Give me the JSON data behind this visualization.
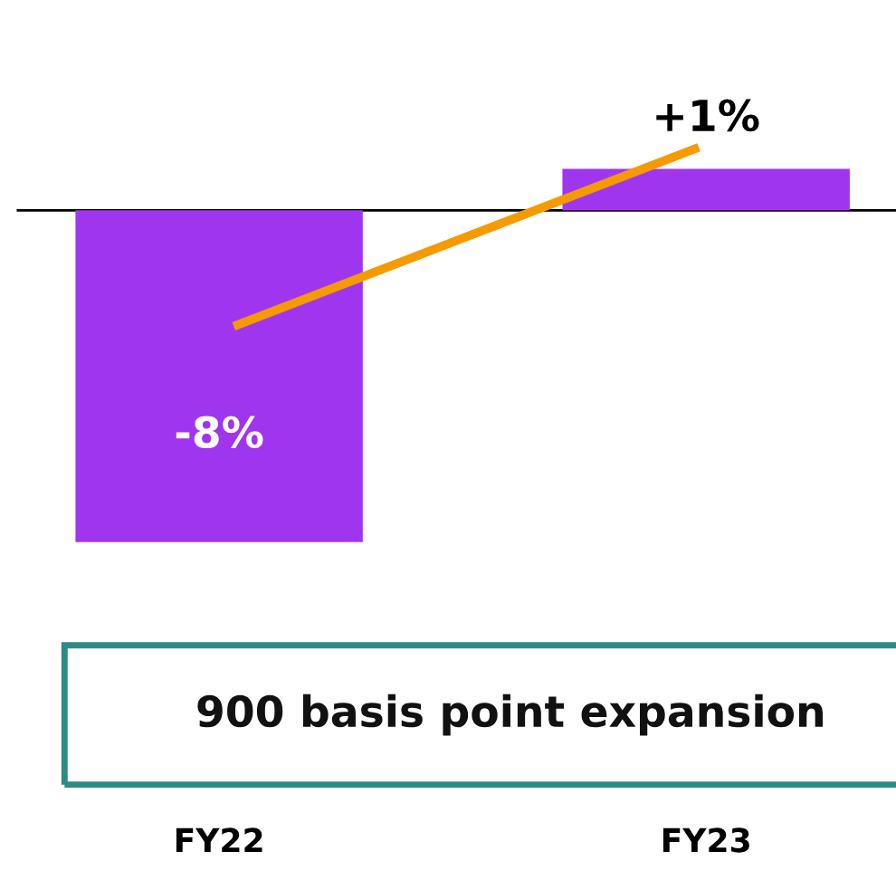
{
  "chart_data": {
    "type": "bar",
    "categories": [
      "FY22",
      "FY23"
    ],
    "values": [
      -8,
      1
    ],
    "color": "#a035f0",
    "value_labels": [
      "-8%",
      "+1%"
    ],
    "annotations": [
      "900 basis point expansion"
    ],
    "grid": false,
    "legend": false
  }
}
